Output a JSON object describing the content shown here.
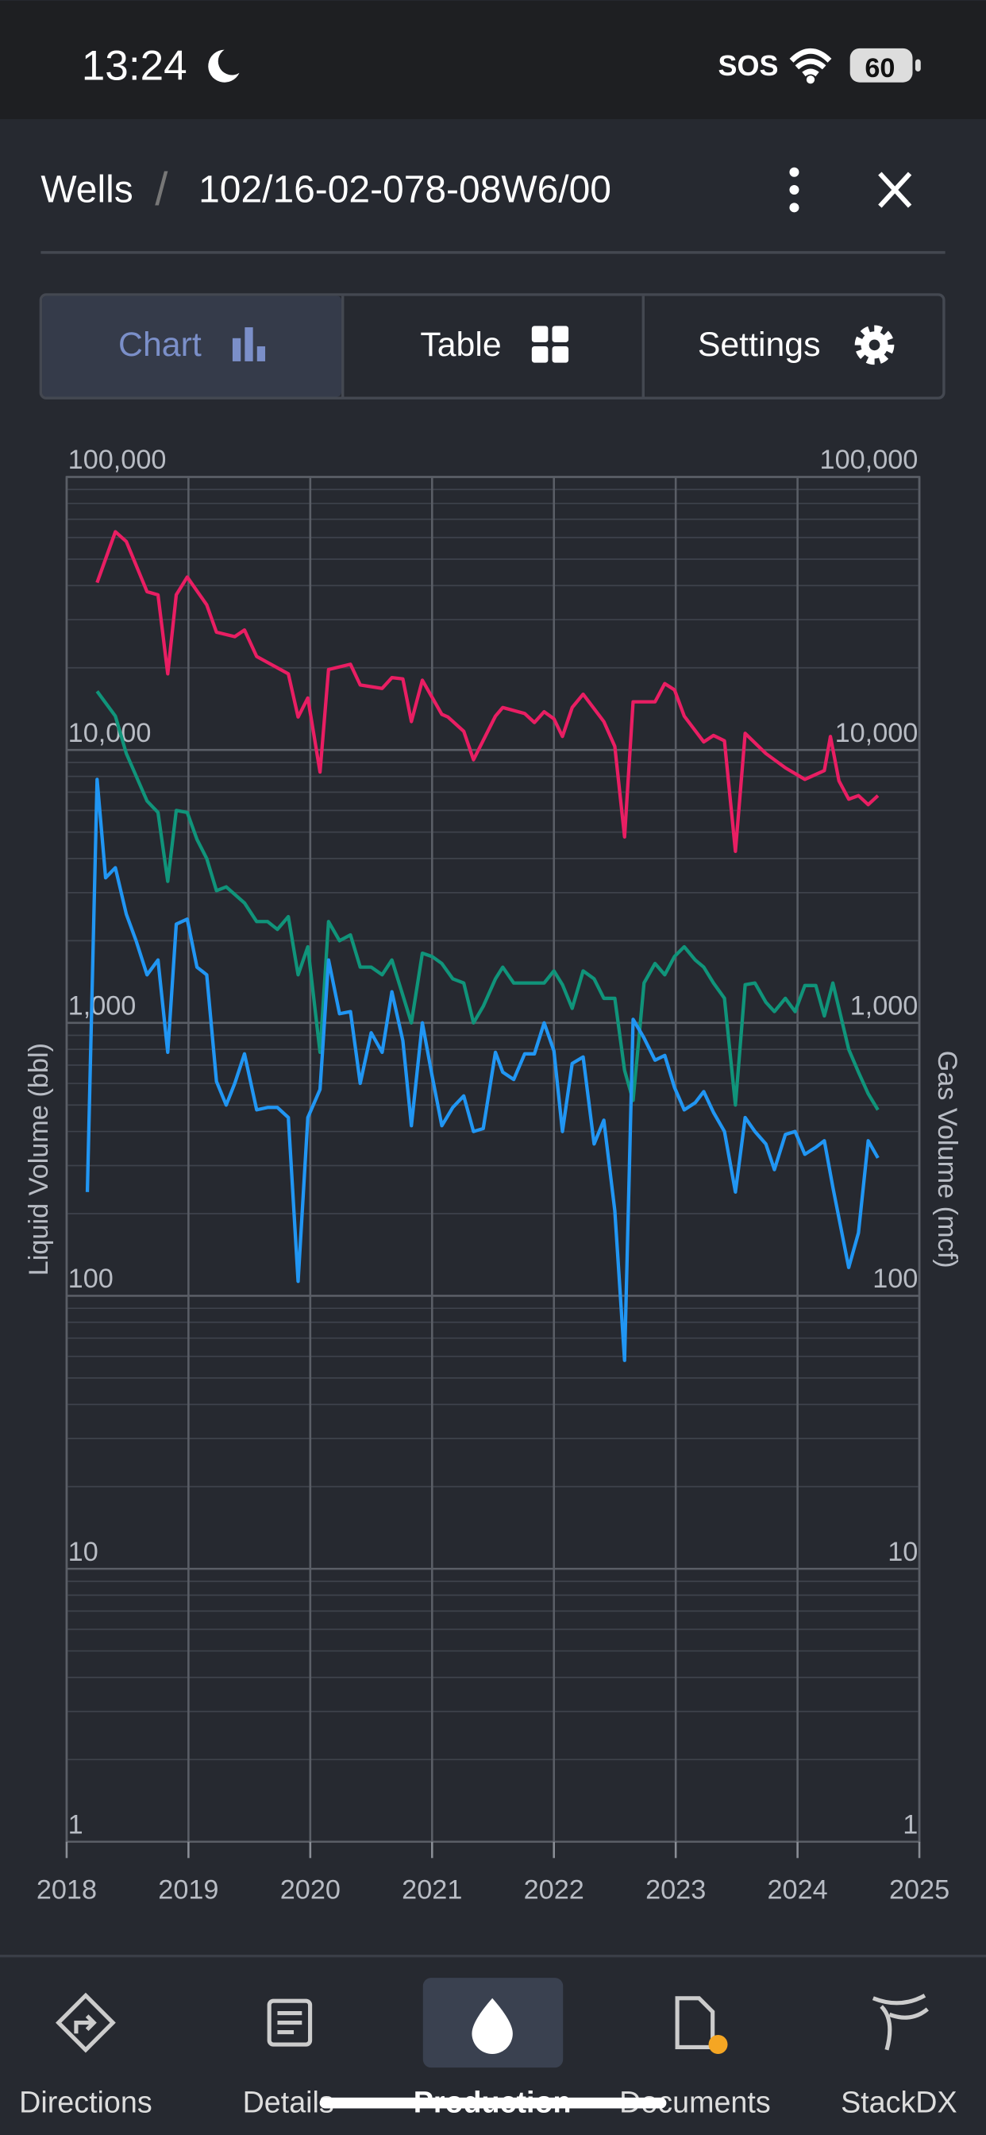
{
  "status_bar": {
    "time": "13:24",
    "sos": "SOS",
    "battery": "60"
  },
  "header": {
    "breadcrumb": "Wells",
    "separator": "/",
    "title": "102/16-02-078-08W6/00"
  },
  "tabs": [
    "Chart",
    "Table",
    "Settings"
  ],
  "chart_data": {
    "type": "line",
    "yscale": "log",
    "y_label": "Liquid Volume (bbl)",
    "y2_label": "Gas Volume (mcf)",
    "grid": true,
    "xlim": [
      2018,
      2025
    ],
    "xticks": [
      2018,
      2019,
      2020,
      2021,
      2022,
      2023,
      2024,
      2025
    ],
    "ylim": [
      1,
      100000
    ],
    "yticks": [
      {
        "value": 100000,
        "label": "100,000"
      },
      {
        "value": 10000,
        "label": "10,000"
      },
      {
        "value": 1000,
        "label": "1,000"
      },
      100,
      10,
      1
    ],
    "y2lim": [
      1,
      100000
    ],
    "y2ticks": [
      {
        "value": 100000,
        "label": "100,000"
      },
      {
        "value": 10000,
        "label": "10,000"
      },
      {
        "value": 1000,
        "label": "1,000"
      },
      100,
      10,
      1
    ],
    "series": [
      {
        "color": "#e91e63",
        "axis": "y2",
        "x": [
          2018.25,
          2018.4,
          2018.49,
          2018.66,
          2018.75,
          2018.83,
          2018.9,
          2018.99,
          2019.15,
          2019.23,
          2019.38,
          2019.46,
          2019.56,
          2019.82,
          2019.9,
          2019.98,
          2020.08,
          2020.15,
          2020.33,
          2020.41,
          2020.59,
          2020.67,
          2020.76,
          2020.83,
          2020.92,
          2021.08,
          2021.13,
          2021.26,
          2021.34,
          2021.52,
          2021.58,
          2021.76,
          2021.84,
          2021.92,
          2022.0,
          2022.07,
          2022.15,
          2022.24,
          2022.41,
          2022.5,
          2022.58,
          2022.65,
          2022.83,
          2022.91,
          2022.99,
          2023.07,
          2023.23,
          2023.31,
          2023.4,
          2023.49,
          2023.57,
          2023.74,
          2023.9,
          2024.06,
          2024.22,
          2024.27,
          2024.34,
          2024.42,
          2024.5,
          2024.58,
          2024.66
        ],
        "values": [
          41000,
          63000,
          58000,
          38000,
          37000,
          19000,
          37000,
          43000,
          34000,
          27000,
          26000,
          27500,
          22000,
          19000,
          13200,
          15500,
          8300,
          19700,
          20600,
          17300,
          16800,
          18400,
          18200,
          12700,
          18000,
          13500,
          13200,
          11700,
          9200,
          13300,
          14300,
          13600,
          12600,
          13800,
          13000,
          11200,
          14300,
          16000,
          12700,
          10300,
          4800,
          15000,
          15000,
          17500,
          16600,
          13300,
          10700,
          11300,
          10800,
          4250,
          11500,
          9700,
          8600,
          7800,
          8400,
          11200,
          7700,
          6600,
          6800,
          6300,
          6800
        ]
      },
      {
        "color": "#10947a",
        "x": [
          2018.25,
          2018.4,
          2018.49,
          2018.66,
          2018.75,
          2018.83,
          2018.9,
          2018.99,
          2019.07,
          2019.15,
          2019.23,
          2019.31,
          2019.46,
          2019.56,
          2019.65,
          2019.73,
          2019.82,
          2019.9,
          2019.98,
          2020.08,
          2020.15,
          2020.24,
          2020.33,
          2020.41,
          2020.5,
          2020.59,
          2020.67,
          2020.83,
          2020.92,
          2021.0,
          2021.08,
          2021.17,
          2021.26,
          2021.34,
          2021.42,
          2021.52,
          2021.58,
          2021.67,
          2021.76,
          2021.92,
          2022.0,
          2022.07,
          2022.15,
          2022.24,
          2022.33,
          2022.41,
          2022.5,
          2022.58,
          2022.65,
          2022.74,
          2022.83,
          2022.91,
          2022.99,
          2023.07,
          2023.16,
          2023.23,
          2023.31,
          2023.4,
          2023.49,
          2023.57,
          2023.65,
          2023.74,
          2023.81,
          2023.9,
          2023.98,
          2024.06,
          2024.15,
          2024.22,
          2024.29,
          2024.42,
          2024.5,
          2024.58,
          2024.66
        ],
        "values": [
          16400,
          13300,
          9700,
          6500,
          5900,
          3300,
          6000,
          5900,
          4700,
          4000,
          3050,
          3150,
          2750,
          2350,
          2350,
          2200,
          2450,
          1500,
          1900,
          780,
          2350,
          2000,
          2100,
          1600,
          1600,
          1500,
          1700,
          1000,
          1800,
          1750,
          1650,
          1450,
          1400,
          1000,
          1150,
          1450,
          1600,
          1400,
          1400,
          1400,
          1550,
          1380,
          1130,
          1550,
          1450,
          1230,
          1230,
          670,
          520,
          1400,
          1650,
          1500,
          1750,
          1900,
          1700,
          1600,
          1400,
          1230,
          500,
          1380,
          1400,
          1190,
          1100,
          1230,
          1100,
          1370,
          1370,
          1060,
          1400,
          800,
          660,
          550,
          480
        ]
      },
      {
        "color": "#2196f3",
        "x": [
          2018.17,
          2018.25,
          2018.32,
          2018.4,
          2018.49,
          2018.57,
          2018.66,
          2018.75,
          2018.83,
          2018.9,
          2018.99,
          2019.07,
          2019.15,
          2019.23,
          2019.31,
          2019.38,
          2019.46,
          2019.56,
          2019.65,
          2019.73,
          2019.82,
          2019.9,
          2019.98,
          2020.08,
          2020.15,
          2020.24,
          2020.33,
          2020.41,
          2020.5,
          2020.59,
          2020.67,
          2020.76,
          2020.83,
          2020.92,
          2021.0,
          2021.08,
          2021.17,
          2021.26,
          2021.34,
          2021.42,
          2021.52,
          2021.58,
          2021.67,
          2021.76,
          2021.84,
          2021.92,
          2022.0,
          2022.07,
          2022.15,
          2022.24,
          2022.33,
          2022.41,
          2022.5,
          2022.58,
          2022.65,
          2022.74,
          2022.83,
          2022.91,
          2022.99,
          2023.07,
          2023.16,
          2023.23,
          2023.31,
          2023.4,
          2023.49,
          2023.57,
          2023.65,
          2023.74,
          2023.81,
          2023.9,
          2023.98,
          2024.06,
          2024.15,
          2024.22,
          2024.29,
          2024.42,
          2024.5,
          2024.58,
          2024.66
        ],
        "values": [
          240,
          7800,
          3400,
          3700,
          2500,
          2000,
          1500,
          1700,
          780,
          2300,
          2400,
          1600,
          1500,
          610,
          500,
          600,
          770,
          480,
          490,
          490,
          450,
          113,
          450,
          570,
          1700,
          1080,
          1100,
          600,
          920,
          780,
          1300,
          860,
          420,
          1000,
          640,
          420,
          490,
          540,
          400,
          410,
          780,
          660,
          620,
          770,
          770,
          1000,
          790,
          400,
          710,
          750,
          360,
          440,
          205,
          58,
          1030,
          880,
          730,
          760,
          580,
          480,
          510,
          560,
          470,
          400,
          240,
          450,
          400,
          360,
          290,
          390,
          400,
          330,
          350,
          370,
          250,
          127,
          170,
          370,
          320
        ]
      }
    ]
  },
  "nav": [
    "Directions",
    "Details",
    "Production",
    "Documents",
    "StackDX"
  ]
}
